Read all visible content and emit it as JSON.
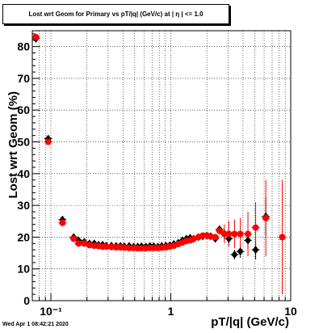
{
  "stamp": "Wed Apr  1 08:42:21 2020",
  "chart_data": {
    "type": "scatter",
    "title": "Lost wrt Geom for Primary vs pT/|q| (GeV/c) at | η | <= 1.0",
    "xlabel": "pT/|q| (GeV/c)",
    "ylabel": "Lost wrt Geom (%)",
    "xscale": "log",
    "xlim": [
      0.07,
      10
    ],
    "ylim": [
      0,
      85
    ],
    "grid": true,
    "x_tick_labels": [
      {
        "x": 0.1,
        "label": "10⁻¹"
      },
      {
        "x": 1,
        "label": "1"
      },
      {
        "x": 10,
        "label": "10"
      }
    ],
    "y_ticks": [
      0,
      10,
      20,
      30,
      40,
      50,
      60,
      70,
      80
    ],
    "series": [
      {
        "color": "#000000",
        "marker": "diamond",
        "points": [
          {
            "x": 0.075,
            "y": 82.5,
            "yerr": 0.8
          },
          {
            "x": 0.095,
            "y": 51.0,
            "yerr": 0.8
          },
          {
            "x": 0.125,
            "y": 25.5,
            "yerr": 0.8
          },
          {
            "x": 0.155,
            "y": 20.0,
            "yerr": 0.6
          },
          {
            "x": 0.17,
            "y": 19.0
          },
          {
            "x": 0.19,
            "y": 18.5
          },
          {
            "x": 0.21,
            "y": 18.0
          },
          {
            "x": 0.23,
            "y": 18.0
          },
          {
            "x": 0.25,
            "y": 17.6
          },
          {
            "x": 0.27,
            "y": 17.6
          },
          {
            "x": 0.29,
            "y": 17.3
          },
          {
            "x": 0.32,
            "y": 17.3
          },
          {
            "x": 0.35,
            "y": 17.2
          },
          {
            "x": 0.38,
            "y": 17.2
          },
          {
            "x": 0.41,
            "y": 17.1
          },
          {
            "x": 0.45,
            "y": 17.2
          },
          {
            "x": 0.49,
            "y": 17.0
          },
          {
            "x": 0.53,
            "y": 17.0
          },
          {
            "x": 0.57,
            "y": 17.1
          },
          {
            "x": 0.62,
            "y": 17.0
          },
          {
            "x": 0.67,
            "y": 17.2
          },
          {
            "x": 0.72,
            "y": 17.1
          },
          {
            "x": 0.78,
            "y": 17.0
          },
          {
            "x": 0.84,
            "y": 17.2
          },
          {
            "x": 0.91,
            "y": 17.3
          },
          {
            "x": 0.98,
            "y": 17.4
          },
          {
            "x": 1.06,
            "y": 17.8
          },
          {
            "x": 1.15,
            "y": 18.2
          },
          {
            "x": 1.25,
            "y": 19.0
          },
          {
            "x": 1.35,
            "y": 19.5
          },
          {
            "x": 1.45,
            "y": 19.8
          },
          {
            "x": 1.55,
            "y": 19.5
          },
          {
            "x": 1.7,
            "y": 20.0
          },
          {
            "x": 1.85,
            "y": 20.3
          },
          {
            "x": 2.0,
            "y": 20.5
          },
          {
            "x": 2.15,
            "y": 20.3
          },
          {
            "x": 2.35,
            "y": 19.5
          },
          {
            "x": 2.55,
            "y": 22.5,
            "yerr": 1.0
          },
          {
            "x": 2.8,
            "y": 21.0,
            "yerr": 1.5
          },
          {
            "x": 3.05,
            "y": 19.5,
            "yerr": 1.5
          },
          {
            "x": 3.4,
            "y": 14.5,
            "yerr": 1.5
          },
          {
            "x": 3.8,
            "y": 15.5,
            "yerr": 2.0
          },
          {
            "x": 4.4,
            "y": 19.0,
            "yerr": 2.5
          },
          {
            "x": 5.1,
            "y": 16.0,
            "yerr": 3.0
          },
          {
            "x": 6.2,
            "y": 26.5,
            "yerr": 6.0
          }
        ]
      },
      {
        "color": "#ff0000",
        "marker": "circle",
        "points": [
          {
            "x": 0.075,
            "y": 83.0,
            "yerr": 0.8
          },
          {
            "x": 0.095,
            "y": 50.0,
            "yerr": 0.8
          },
          {
            "x": 0.125,
            "y": 24.5,
            "yerr": 0.8
          },
          {
            "x": 0.155,
            "y": 19.5,
            "yerr": 0.6
          },
          {
            "x": 0.17,
            "y": 18.0
          },
          {
            "x": 0.19,
            "y": 18.0
          },
          {
            "x": 0.21,
            "y": 17.5
          },
          {
            "x": 0.23,
            "y": 17.3
          },
          {
            "x": 0.25,
            "y": 17.2
          },
          {
            "x": 0.27,
            "y": 17.0
          },
          {
            "x": 0.29,
            "y": 17.0
          },
          {
            "x": 0.32,
            "y": 16.9
          },
          {
            "x": 0.35,
            "y": 16.8
          },
          {
            "x": 0.38,
            "y": 16.8
          },
          {
            "x": 0.41,
            "y": 16.7
          },
          {
            "x": 0.45,
            "y": 16.6
          },
          {
            "x": 0.49,
            "y": 16.6
          },
          {
            "x": 0.53,
            "y": 16.5
          },
          {
            "x": 0.57,
            "y": 16.5
          },
          {
            "x": 0.62,
            "y": 16.5
          },
          {
            "x": 0.67,
            "y": 16.6
          },
          {
            "x": 0.72,
            "y": 16.6
          },
          {
            "x": 0.78,
            "y": 16.6
          },
          {
            "x": 0.84,
            "y": 16.7
          },
          {
            "x": 0.91,
            "y": 16.8
          },
          {
            "x": 0.98,
            "y": 17.0
          },
          {
            "x": 1.06,
            "y": 17.3
          },
          {
            "x": 1.15,
            "y": 17.8
          },
          {
            "x": 1.25,
            "y": 18.3
          },
          {
            "x": 1.35,
            "y": 18.8
          },
          {
            "x": 1.45,
            "y": 19.0
          },
          {
            "x": 1.55,
            "y": 19.5
          },
          {
            "x": 1.7,
            "y": 20.0
          },
          {
            "x": 1.85,
            "y": 20.5
          },
          {
            "x": 2.0,
            "y": 20.5
          },
          {
            "x": 2.15,
            "y": 20.2
          },
          {
            "x": 2.35,
            "y": 20.0
          },
          {
            "x": 2.55,
            "y": 22.0,
            "yerr": 1.2
          },
          {
            "x": 2.8,
            "y": 21.0,
            "yerr": 3.0
          },
          {
            "x": 3.05,
            "y": 21.0,
            "yerr": 4.0
          },
          {
            "x": 3.4,
            "y": 21.0,
            "yerr": 4.5
          },
          {
            "x": 3.8,
            "y": 21.0,
            "yerr": 5.0
          },
          {
            "x": 4.4,
            "y": 21.0,
            "yerr": 7.0
          },
          {
            "x": 5.1,
            "y": 23.0,
            "yerr": 8.0
          },
          {
            "x": 6.2,
            "y": 26.0,
            "yerr": 12.0
          },
          {
            "x": 8.5,
            "y": 20.0,
            "yerr": 18.0
          }
        ]
      }
    ]
  }
}
